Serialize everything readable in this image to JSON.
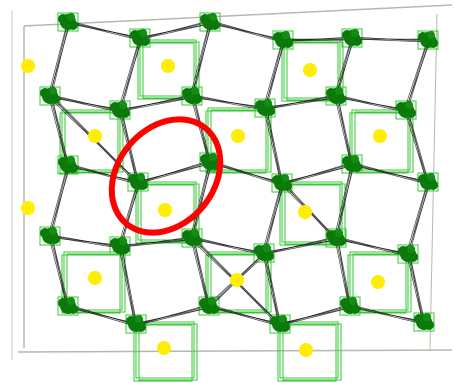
{
  "colors": {
    "background": "#ffffff",
    "frame": "#b8b8a8",
    "lattice_edge": "#1a1a1a",
    "node": "#0b7a0b",
    "square_outline": "#35c935",
    "dot": "#ffee00",
    "highlight": "#ff0000"
  },
  "icons": {
    "node": "node-cluster-icon",
    "dot": "yellow-dot-icon",
    "highlight": "red-ellipse-highlight"
  },
  "diagram": {
    "type": "distorted square lattice",
    "grid_columns": 5,
    "grid_rows": 4,
    "highlighted_cell": {
      "column": 1,
      "row": 1
    }
  }
}
